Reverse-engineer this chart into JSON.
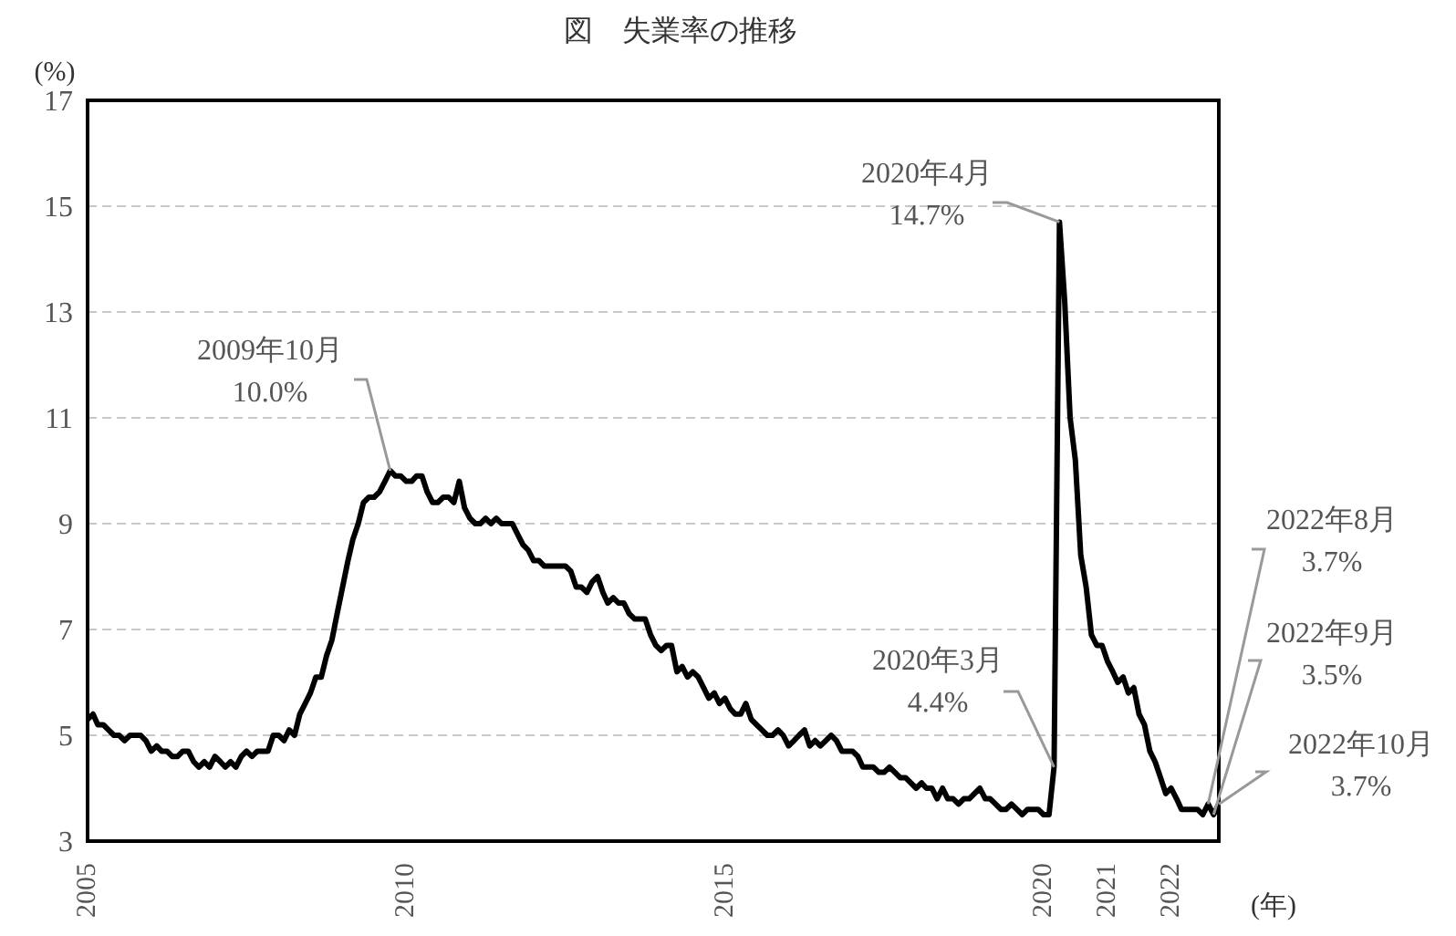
{
  "chart_data": {
    "type": "line",
    "title": "図　失業率の推移",
    "ylabel": "(%)",
    "xlabel": "(年)",
    "x": [
      "2005-01",
      "2005-02",
      "2005-03",
      "2005-04",
      "2005-05",
      "2005-06",
      "2005-07",
      "2005-08",
      "2005-09",
      "2005-10",
      "2005-11",
      "2005-12",
      "2006-01",
      "2006-02",
      "2006-03",
      "2006-04",
      "2006-05",
      "2006-06",
      "2006-07",
      "2006-08",
      "2006-09",
      "2006-10",
      "2006-11",
      "2006-12",
      "2007-01",
      "2007-02",
      "2007-03",
      "2007-04",
      "2007-05",
      "2007-06",
      "2007-07",
      "2007-08",
      "2007-09",
      "2007-10",
      "2007-11",
      "2007-12",
      "2008-01",
      "2008-02",
      "2008-03",
      "2008-04",
      "2008-05",
      "2008-06",
      "2008-07",
      "2008-08",
      "2008-09",
      "2008-10",
      "2008-11",
      "2008-12",
      "2009-01",
      "2009-02",
      "2009-03",
      "2009-04",
      "2009-05",
      "2009-06",
      "2009-07",
      "2009-08",
      "2009-09",
      "2009-10",
      "2009-11",
      "2009-12",
      "2010-01",
      "2010-02",
      "2010-03",
      "2010-04",
      "2010-05",
      "2010-06",
      "2010-07",
      "2010-08",
      "2010-09",
      "2010-10",
      "2010-11",
      "2010-12",
      "2011-01",
      "2011-02",
      "2011-03",
      "2011-04",
      "2011-05",
      "2011-06",
      "2011-07",
      "2011-08",
      "2011-09",
      "2011-10",
      "2011-11",
      "2011-12",
      "2012-01",
      "2012-02",
      "2012-03",
      "2012-04",
      "2012-05",
      "2012-06",
      "2012-07",
      "2012-08",
      "2012-09",
      "2012-10",
      "2012-11",
      "2012-12",
      "2013-01",
      "2013-02",
      "2013-03",
      "2013-04",
      "2013-05",
      "2013-06",
      "2013-07",
      "2013-08",
      "2013-09",
      "2013-10",
      "2013-11",
      "2013-12",
      "2014-01",
      "2014-02",
      "2014-03",
      "2014-04",
      "2014-05",
      "2014-06",
      "2014-07",
      "2014-08",
      "2014-09",
      "2014-10",
      "2014-11",
      "2014-12",
      "2015-01",
      "2015-02",
      "2015-03",
      "2015-04",
      "2015-05",
      "2015-06",
      "2015-07",
      "2015-08",
      "2015-09",
      "2015-10",
      "2015-11",
      "2015-12",
      "2016-01",
      "2016-02",
      "2016-03",
      "2016-04",
      "2016-05",
      "2016-06",
      "2016-07",
      "2016-08",
      "2016-09",
      "2016-10",
      "2016-11",
      "2016-12",
      "2017-01",
      "2017-02",
      "2017-03",
      "2017-04",
      "2017-05",
      "2017-06",
      "2017-07",
      "2017-08",
      "2017-09",
      "2017-10",
      "2017-11",
      "2017-12",
      "2018-01",
      "2018-02",
      "2018-03",
      "2018-04",
      "2018-05",
      "2018-06",
      "2018-07",
      "2018-08",
      "2018-09",
      "2018-10",
      "2018-11",
      "2018-12",
      "2019-01",
      "2019-02",
      "2019-03",
      "2019-04",
      "2019-05",
      "2019-06",
      "2019-07",
      "2019-08",
      "2019-09",
      "2019-10",
      "2019-11",
      "2019-12",
      "2020-01",
      "2020-02",
      "2020-03",
      "2020-04",
      "2020-05",
      "2020-06",
      "2020-07",
      "2020-08",
      "2020-09",
      "2020-10",
      "2020-11",
      "2020-12",
      "2021-01",
      "2021-02",
      "2021-03",
      "2021-04",
      "2021-05",
      "2021-06",
      "2021-07",
      "2021-08",
      "2021-09",
      "2021-10",
      "2021-11",
      "2021-12",
      "2022-01",
      "2022-02",
      "2022-03",
      "2022-04",
      "2022-05",
      "2022-06",
      "2022-07",
      "2022-08",
      "2022-09",
      "2022-10"
    ],
    "series": [
      {
        "color": "#000000",
        "values": [
          5.3,
          5.4,
          5.2,
          5.2,
          5.1,
          5.0,
          5.0,
          4.9,
          5.0,
          5.0,
          5.0,
          4.9,
          4.7,
          4.8,
          4.7,
          4.7,
          4.6,
          4.6,
          4.7,
          4.7,
          4.5,
          4.4,
          4.5,
          4.4,
          4.6,
          4.5,
          4.4,
          4.5,
          4.4,
          4.6,
          4.7,
          4.6,
          4.7,
          4.7,
          4.7,
          5.0,
          5.0,
          4.9,
          5.1,
          5.0,
          5.4,
          5.6,
          5.8,
          6.1,
          6.1,
          6.5,
          6.8,
          7.3,
          7.8,
          8.3,
          8.7,
          9.0,
          9.4,
          9.5,
          9.5,
          9.6,
          9.8,
          10.0,
          9.9,
          9.9,
          9.8,
          9.8,
          9.9,
          9.9,
          9.6,
          9.4,
          9.4,
          9.5,
          9.5,
          9.4,
          9.8,
          9.3,
          9.1,
          9.0,
          9.0,
          9.1,
          9.0,
          9.1,
          9.0,
          9.0,
          9.0,
          8.8,
          8.6,
          8.5,
          8.3,
          8.3,
          8.2,
          8.2,
          8.2,
          8.2,
          8.2,
          8.1,
          7.8,
          7.8,
          7.7,
          7.9,
          8.0,
          7.7,
          7.5,
          7.6,
          7.5,
          7.5,
          7.3,
          7.2,
          7.2,
          7.2,
          6.9,
          6.7,
          6.6,
          6.7,
          6.7,
          6.2,
          6.3,
          6.1,
          6.2,
          6.1,
          5.9,
          5.7,
          5.8,
          5.6,
          5.7,
          5.5,
          5.4,
          5.4,
          5.6,
          5.3,
          5.2,
          5.1,
          5.0,
          5.0,
          5.1,
          5.0,
          4.8,
          4.9,
          5.0,
          5.1,
          4.8,
          4.9,
          4.8,
          4.9,
          5.0,
          4.9,
          4.7,
          4.7,
          4.7,
          4.6,
          4.4,
          4.4,
          4.4,
          4.3,
          4.3,
          4.4,
          4.3,
          4.2,
          4.2,
          4.1,
          4.0,
          4.1,
          4.0,
          4.0,
          3.8,
          4.0,
          3.8,
          3.8,
          3.7,
          3.8,
          3.8,
          3.9,
          4.0,
          3.8,
          3.8,
          3.7,
          3.6,
          3.6,
          3.7,
          3.6,
          3.5,
          3.6,
          3.6,
          3.6,
          3.5,
          3.5,
          4.4,
          14.7,
          13.2,
          11.0,
          10.2,
          8.4,
          7.8,
          6.9,
          6.7,
          6.7,
          6.4,
          6.2,
          6.0,
          6.1,
          5.8,
          5.9,
          5.4,
          5.2,
          4.7,
          4.5,
          4.2,
          3.9,
          4.0,
          3.8,
          3.6,
          3.6,
          3.6,
          3.6,
          3.5,
          3.7,
          3.5,
          3.7
        ]
      }
    ],
    "xlim": [
      "2005-01",
      "2022-10"
    ],
    "xticks": [
      "2005",
      "2010",
      "2015",
      "2020",
      "2021",
      "2022"
    ],
    "ylim": [
      3,
      17
    ],
    "yticks": [
      3,
      5,
      7,
      9,
      11,
      13,
      15,
      17
    ],
    "grid": "y",
    "marker": "none",
    "line_style": "solid",
    "annotations": [
      {
        "text": "2009年10月\n10.0%",
        "x": "2009-10",
        "y": 10.0
      },
      {
        "text": "2020年4月\n14.7%",
        "x": "2020-04",
        "y": 14.7
      },
      {
        "text": "2020年3月\n4.4%",
        "x": "2020-03",
        "y": 4.4
      },
      {
        "text": "2022年8月\n3.7%",
        "x": "2022-08",
        "y": 3.7
      },
      {
        "text": "2022年9月\n3.5%",
        "x": "2022-09",
        "y": 3.5
      },
      {
        "text": "2022年10月\n3.7%",
        "x": "2022-10",
        "y": 3.7
      }
    ]
  }
}
